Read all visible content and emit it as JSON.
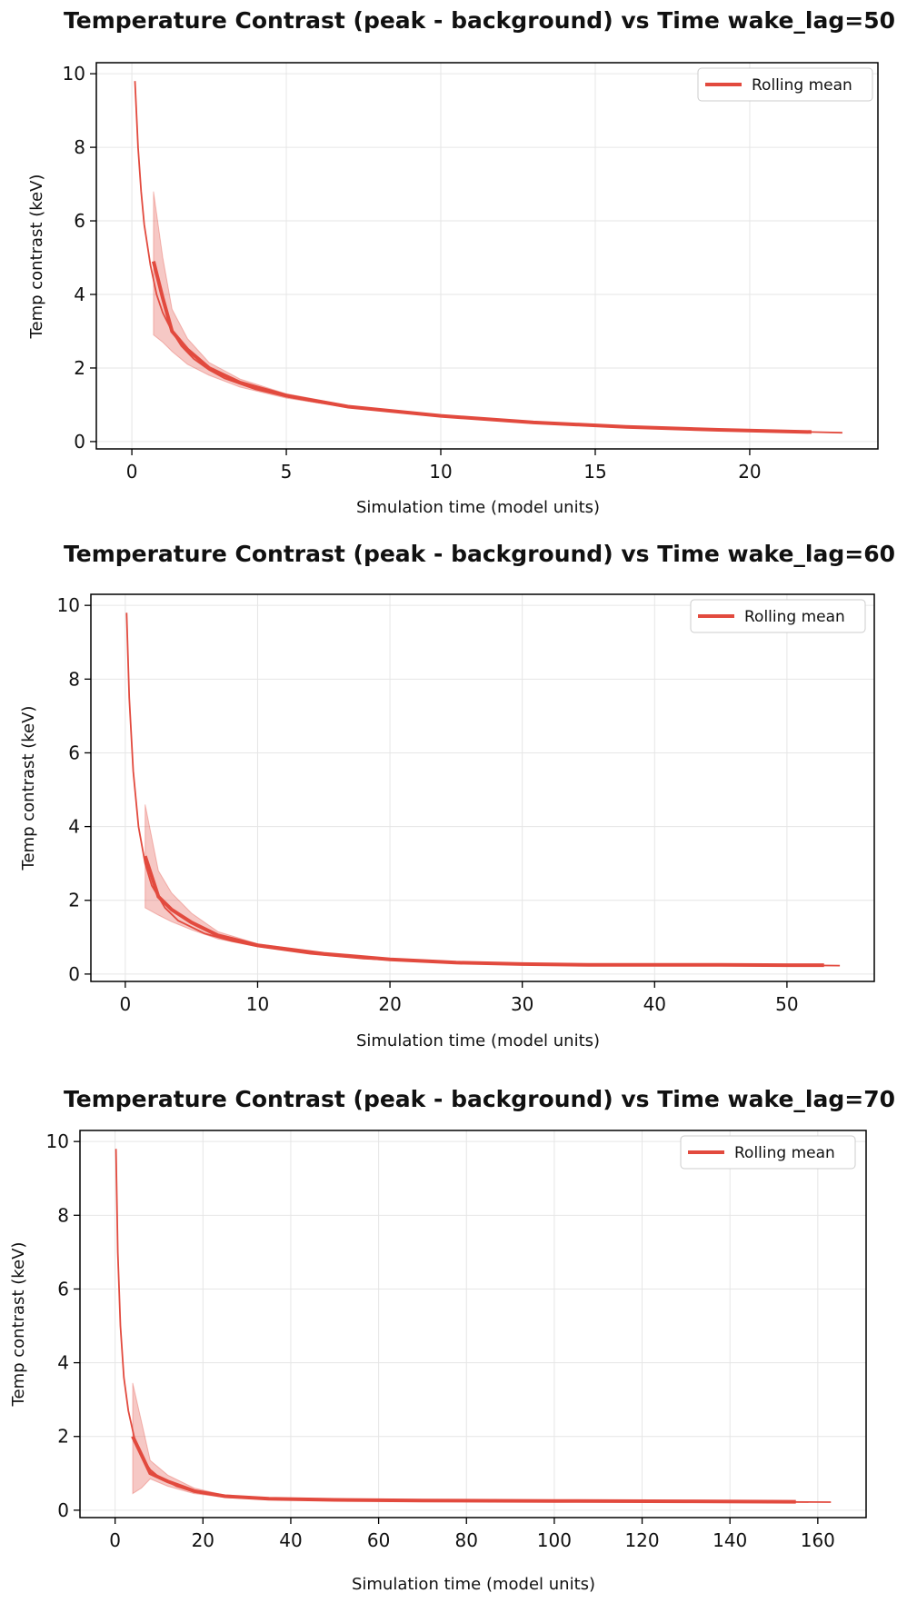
{
  "chart_data": [
    {
      "type": "line",
      "title": "Temperature Contrast (peak - background) vs Time wake_lag=50°",
      "xlabel": "Simulation time (model units)",
      "ylabel": "Temp contrast (keV)",
      "xlim": [
        -1.15,
        24.15
      ],
      "ylim": [
        -0.2,
        10.3
      ],
      "xticks": [
        0,
        5,
        10,
        15,
        20
      ],
      "yticks": [
        0,
        2,
        4,
        6,
        8,
        10
      ],
      "grid": true,
      "legend_position": "top-right",
      "legend": [
        "Rolling mean"
      ],
      "accent_color": "#e24a3e",
      "band_color": "#f2b3ab",
      "series": [
        {
          "role": "raw",
          "x": [
            0.1,
            0.2,
            0.3,
            0.4,
            0.6,
            0.8,
            1.0,
            1.3,
            1.6,
            2.0,
            2.5,
            3.0,
            4.0,
            5.0,
            6.0,
            7.0,
            8.0,
            10.0,
            12.0,
            14.0,
            16.0,
            18.0,
            20.0,
            22.0,
            23.0
          ],
          "y": [
            9.8,
            8.0,
            6.8,
            5.9,
            4.8,
            4.0,
            3.5,
            3.0,
            2.6,
            2.25,
            1.95,
            1.72,
            1.42,
            1.22,
            1.07,
            0.95,
            0.85,
            0.69,
            0.57,
            0.48,
            0.41,
            0.35,
            0.3,
            0.26,
            0.24
          ]
        },
        {
          "role": "rolling_mean",
          "name": "Rolling mean",
          "x": [
            0.7,
            1.0,
            1.3,
            1.8,
            2.5,
            3.5,
            5.0,
            7.0,
            10.0,
            13.0,
            16.0,
            19.0,
            22.0
          ],
          "y": [
            4.9,
            3.9,
            3.0,
            2.5,
            2.0,
            1.6,
            1.25,
            0.95,
            0.7,
            0.52,
            0.4,
            0.32,
            0.26
          ]
        },
        {
          "role": "band",
          "x": [
            0.7,
            1.0,
            1.3,
            1.8,
            2.5,
            3.5,
            5.0,
            7.0,
            10.0,
            13.0,
            16.0,
            19.0,
            22.0
          ],
          "upper": [
            6.8,
            5.0,
            3.6,
            2.8,
            2.15,
            1.7,
            1.3,
            0.98,
            0.72,
            0.53,
            0.41,
            0.33,
            0.27
          ],
          "lower": [
            2.9,
            2.7,
            2.45,
            2.1,
            1.8,
            1.48,
            1.18,
            0.92,
            0.68,
            0.5,
            0.39,
            0.31,
            0.25
          ]
        }
      ]
    },
    {
      "type": "line",
      "title": "Temperature Contrast (peak - background) vs Time wake_lag=60°",
      "xlabel": "Simulation time (model units)",
      "ylabel": "Temp contrast (keV)",
      "xlim": [
        -2.6,
        56.6
      ],
      "ylim": [
        -0.2,
        10.3
      ],
      "xticks": [
        0,
        10,
        20,
        30,
        40,
        50
      ],
      "yticks": [
        0,
        2,
        4,
        6,
        8,
        10
      ],
      "grid": true,
      "legend_position": "top-right",
      "legend": [
        "Rolling mean"
      ],
      "accent_color": "#e24a3e",
      "band_color": "#f2b3ab",
      "series": [
        {
          "role": "raw",
          "x": [
            0.1,
            0.3,
            0.6,
            1.0,
            1.5,
            2.0,
            3.0,
            4.0,
            6.0,
            8.0,
            10.0,
            14.0,
            18.0,
            22.0,
            26.0,
            30.0,
            35.0,
            40.0,
            45.0,
            50.0,
            54.0
          ],
          "y": [
            9.8,
            7.5,
            5.5,
            4.0,
            3.0,
            2.4,
            1.8,
            1.45,
            1.1,
            0.9,
            0.75,
            0.55,
            0.42,
            0.35,
            0.3,
            0.27,
            0.25,
            0.25,
            0.24,
            0.24,
            0.23
          ]
        },
        {
          "role": "rolling_mean",
          "name": "Rolling mean",
          "x": [
            1.5,
            2.5,
            3.5,
            5.0,
            7.0,
            10.0,
            15.0,
            20.0,
            25.0,
            30.0,
            35.0,
            40.0,
            45.0,
            50.0,
            52.8
          ],
          "y": [
            3.2,
            2.1,
            1.75,
            1.4,
            1.05,
            0.78,
            0.55,
            0.4,
            0.31,
            0.27,
            0.25,
            0.25,
            0.25,
            0.24,
            0.24
          ]
        },
        {
          "role": "band",
          "x": [
            1.5,
            2.5,
            3.5,
            5.0,
            7.0,
            10.0,
            15.0,
            20.0,
            25.0,
            30.0,
            35.0,
            40.0,
            45.0,
            50.0,
            52.8
          ],
          "upper": [
            4.6,
            2.8,
            2.2,
            1.65,
            1.15,
            0.82,
            0.57,
            0.41,
            0.32,
            0.28,
            0.26,
            0.26,
            0.26,
            0.25,
            0.25
          ],
          "lower": [
            1.8,
            1.6,
            1.42,
            1.2,
            0.95,
            0.74,
            0.53,
            0.39,
            0.3,
            0.26,
            0.24,
            0.24,
            0.24,
            0.23,
            0.23
          ]
        }
      ]
    },
    {
      "type": "line",
      "title": "Temperature Contrast (peak - background) vs Time wake_lag=70°",
      "xlabel": "Simulation time (model units)",
      "ylabel": "Temp contrast (keV)",
      "xlim": [
        -8.0,
        171.0
      ],
      "ylim": [
        -0.2,
        10.3
      ],
      "xticks": [
        0,
        20,
        40,
        60,
        80,
        100,
        120,
        140,
        160
      ],
      "yticks": [
        0,
        2,
        4,
        6,
        8,
        10
      ],
      "grid": true,
      "legend_position": "top-right",
      "legend": [
        "Rolling mean"
      ],
      "accent_color": "#e24a3e",
      "band_color": "#f2b3ab",
      "series": [
        {
          "role": "raw",
          "x": [
            0.2,
            0.6,
            1.2,
            2.0,
            3.0,
            4.5,
            6.0,
            8.0,
            10.0,
            14.0,
            18.0,
            22.0,
            28.0,
            35.0,
            45.0,
            60.0,
            80.0,
            100.0,
            120.0,
            140.0,
            163.0
          ],
          "y": [
            9.8,
            7.0,
            5.0,
            3.6,
            2.7,
            1.9,
            1.45,
            1.1,
            0.9,
            0.65,
            0.5,
            0.42,
            0.35,
            0.31,
            0.28,
            0.26,
            0.25,
            0.24,
            0.24,
            0.23,
            0.22
          ]
        },
        {
          "role": "rolling_mean",
          "name": "Rolling mean",
          "x": [
            4.0,
            6.0,
            8.0,
            12.0,
            18.0,
            25.0,
            35.0,
            50.0,
            70.0,
            100.0,
            130.0,
            155.0
          ],
          "y": [
            2.0,
            1.5,
            1.0,
            0.78,
            0.52,
            0.38,
            0.31,
            0.28,
            0.26,
            0.25,
            0.24,
            0.23
          ]
        },
        {
          "role": "band",
          "x": [
            4.0,
            6.0,
            8.0,
            12.0,
            18.0,
            25.0,
            35.0,
            50.0,
            70.0,
            100.0,
            130.0,
            155.0
          ],
          "upper": [
            3.45,
            2.4,
            1.35,
            0.95,
            0.6,
            0.41,
            0.33,
            0.29,
            0.27,
            0.26,
            0.25,
            0.24
          ],
          "lower": [
            0.45,
            0.6,
            0.85,
            0.65,
            0.45,
            0.35,
            0.29,
            0.27,
            0.25,
            0.24,
            0.23,
            0.22
          ]
        }
      ]
    }
  ]
}
